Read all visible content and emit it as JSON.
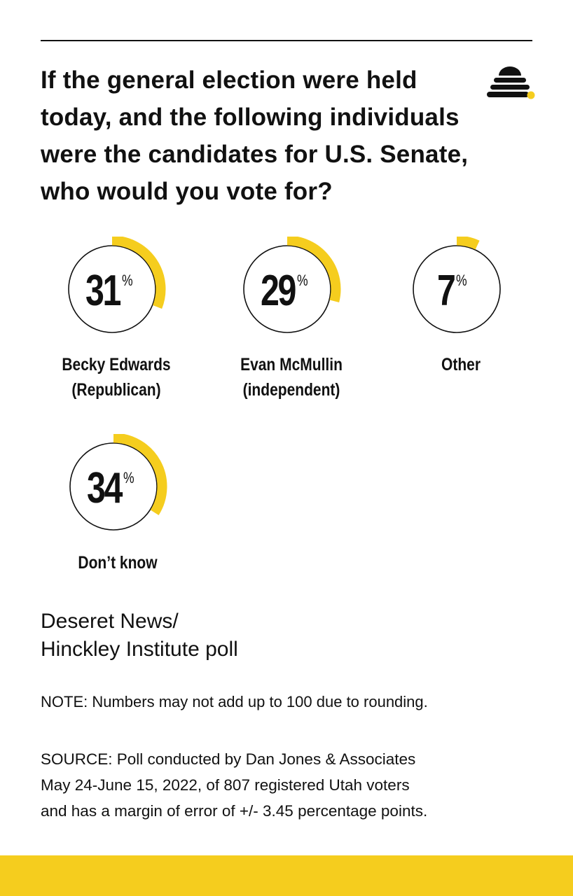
{
  "header": {
    "question": "If the general election were held today, and the following individuals were the candidates for U.S. Senate, who would you vote for?",
    "logo_icon": "beehive-icon"
  },
  "chart_data": {
    "type": "donut",
    "percent_symbol": "%",
    "items": [
      {
        "value": 31,
        "label_line1": "Becky Edwards",
        "label_line2": "(Republican)"
      },
      {
        "value": 29,
        "label_line1": "Evan McMullin",
        "label_line2": "(independent)"
      },
      {
        "value": 7,
        "label_line1": "Other",
        "label_line2": ""
      },
      {
        "value": 34,
        "label_line1": "Don’t know",
        "label_line2": ""
      }
    ]
  },
  "footer": {
    "poll_line1": "Deseret News/",
    "poll_line2": "Hinckley Institute poll",
    "note": "NOTE: Numbers may not add up to 100 due to rounding.",
    "source_line1": "SOURCE: Poll conducted by Dan Jones & Associates",
    "source_line2": "May 24-June 15, 2022, of 807 registered Utah voters",
    "source_line3": "and has a margin of error of +/- 3.45 percentage points."
  },
  "colors": {
    "accent": "#f5cd1e",
    "text": "#111111",
    "background": "#ffffff"
  }
}
